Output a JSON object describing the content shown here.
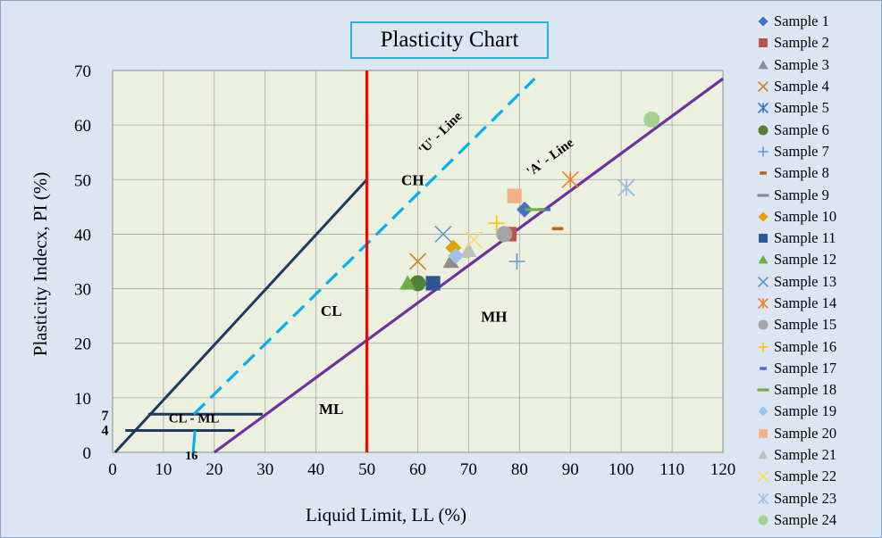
{
  "chart_data": {
    "type": "scatter",
    "title": "Plasticity Chart",
    "xlabel": "Liquid Limit, LL (%)",
    "ylabel": "Plasticity Indecx, PI (%)",
    "xlim": [
      0,
      120
    ],
    "ylim": [
      0,
      70
    ],
    "x_ticks": [
      "0",
      "10",
      "20",
      "30",
      "40",
      "50",
      "60",
      "70",
      "80",
      "90",
      "100",
      "110",
      "120"
    ],
    "y_ticks": [
      "0",
      "10",
      "20",
      "30",
      "40",
      "50",
      "60",
      "70"
    ],
    "plot_background": "#ebf1de",
    "grid": true,
    "legend_position": "right",
    "series": [
      {
        "name": "Sample 1",
        "x": 81,
        "y": 44.5,
        "color": "#4472c4",
        "marker": "diamond"
      },
      {
        "name": "Sample 2",
        "x": 78,
        "y": 40,
        "color": "#c0504d",
        "marker": "square"
      },
      {
        "name": "Sample 3",
        "x": 66.5,
        "y": 35,
        "color": "#8c8c8c",
        "marker": "triangle"
      },
      {
        "name": "Sample 4",
        "x": 60,
        "y": 35,
        "color": "#c8872a",
        "marker": "x"
      },
      {
        "name": "Sample 5",
        "x": 101,
        "y": 48.5,
        "color": "#4472c4",
        "marker": "star"
      },
      {
        "name": "Sample 6",
        "x": 60,
        "y": 31,
        "color": "#548235",
        "marker": "circle"
      },
      {
        "name": "Sample 7",
        "x": 79.5,
        "y": 35,
        "color": "#5b9bd5",
        "marker": "plus"
      },
      {
        "name": "Sample 8",
        "x": 87.5,
        "y": 41,
        "color": "#c55a11",
        "marker": "dash"
      },
      {
        "name": "Sample 9",
        "x": 68,
        "y": 36,
        "color": "#8c8c8c",
        "marker": "longdash"
      },
      {
        "name": "Sample 10",
        "x": 67,
        "y": 37.5,
        "color": "#e0a000",
        "marker": "diamond"
      },
      {
        "name": "Sample 11",
        "x": 63,
        "y": 31,
        "color": "#2f5597",
        "marker": "square"
      },
      {
        "name": "Sample 12",
        "x": 58,
        "y": 31,
        "color": "#70ad47",
        "marker": "triangle"
      },
      {
        "name": "Sample 13",
        "x": 65,
        "y": 40,
        "color": "#5b9bd5",
        "marker": "x"
      },
      {
        "name": "Sample 14",
        "x": 90,
        "y": 50,
        "color": "#ed7d31",
        "marker": "star"
      },
      {
        "name": "Sample 15",
        "x": 77,
        "y": 40,
        "color": "#a5a5a5",
        "marker": "circle"
      },
      {
        "name": "Sample 16",
        "x": 75.5,
        "y": 42,
        "color": "#ffc000",
        "marker": "plus"
      },
      {
        "name": "Sample 17",
        "x": 85,
        "y": 44.5,
        "color": "#4472c4",
        "marker": "dash"
      },
      {
        "name": "Sample 18",
        "x": 83,
        "y": 44.5,
        "color": "#70ad47",
        "marker": "longdash"
      },
      {
        "name": "Sample 19",
        "x": 67.5,
        "y": 36,
        "color": "#9dc3e6",
        "marker": "diamond"
      },
      {
        "name": "Sample 20",
        "x": 79,
        "y": 47,
        "color": "#f4b183",
        "marker": "square"
      },
      {
        "name": "Sample 21",
        "x": 70,
        "y": 37,
        "color": "#bfbfbf",
        "marker": "triangle"
      },
      {
        "name": "Sample 22",
        "x": 71,
        "y": 39,
        "color": "#ffd966",
        "marker": "x"
      },
      {
        "name": "Sample 23",
        "x": 101,
        "y": 48.5,
        "color": "#9dc3e6",
        "marker": "star"
      },
      {
        "name": "Sample 24",
        "x": 106,
        "y": 61,
        "color": "#a9d18e",
        "marker": "circle"
      }
    ],
    "reference_lines": [
      {
        "label": "'A' - Line",
        "color": "#7030a0",
        "points": [
          [
            20,
            0
          ],
          [
            120,
            68.5
          ]
        ]
      },
      {
        "label": "'U' - Line",
        "color": "#00b0f0",
        "dashed": true,
        "points": [
          [
            16,
            7
          ],
          [
            83,
            68.5
          ]
        ]
      },
      {
        "label": "",
        "color": "#ff0000",
        "points": [
          [
            50,
            0
          ],
          [
            50,
            70
          ]
        ]
      }
    ],
    "zone_labels": [
      {
        "text": "CH",
        "x": 59,
        "y": 49
      },
      {
        "text": "CL",
        "x": 43,
        "y": 25
      },
      {
        "text": "MH",
        "x": 75,
        "y": 24
      },
      {
        "text": "ML",
        "x": 43,
        "y": 7
      },
      {
        "text": "CL - ML",
        "x": 16,
        "y": 5.5
      }
    ],
    "boundary_labels": [
      "7",
      "4",
      "16"
    ]
  }
}
